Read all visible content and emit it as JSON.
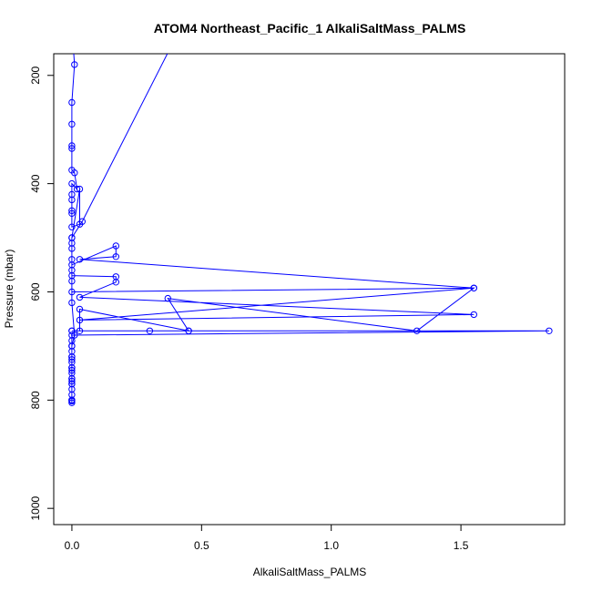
{
  "chart_data": {
    "type": "line",
    "title": "ATOM4 Northeast_Pacific_1 AlkaliSaltMass_PALMS",
    "xlabel": "AlkaliSaltMass_PALMS",
    "ylabel": "Pressure (mbar)",
    "xlim": [
      -0.07,
      1.9
    ],
    "ylim": [
      1030,
      160
    ],
    "y_reversed": true,
    "x_ticks": [
      0,
      0.5,
      1,
      1.5
    ],
    "x_tick_labels": [
      "0.0",
      "0.5",
      "1.0",
      "1.5"
    ],
    "y_ticks": [
      200,
      400,
      600,
      800,
      1000
    ],
    "y_tick_labels": [
      "200",
      "400",
      "600",
      "800",
      "1000"
    ],
    "grid": false,
    "color": "#0000ff",
    "series": [
      {
        "x": [
          0.0,
          0.0,
          0.0,
          0.0,
          0.0,
          0.0,
          0.0,
          0.0,
          0.01,
          0.0,
          0.0,
          0.0,
          0.04,
          0.4,
          0.0,
          0.0,
          0.01,
          0.0,
          0.0,
          0.0,
          0.0,
          0.0,
          0.01,
          0.02,
          0.0,
          0.0,
          0.0,
          0.0,
          0.0,
          0.0,
          0.03,
          0.03,
          0.0,
          0.0,
          0.0,
          0.0,
          0.0,
          0.17,
          0.17,
          0.03,
          1.55,
          0.0,
          0.0,
          0.0,
          0.17,
          0.17,
          0.03,
          1.55,
          0.03,
          1.55,
          1.33,
          0.37,
          0.45,
          0.03,
          0.03,
          0.0,
          0.3,
          0.45,
          0.0,
          1.84,
          0.0,
          0.0,
          0.0,
          0.0,
          0.0,
          0.0,
          0.0,
          0.0,
          0.0,
          0.0,
          0.0,
          0.0,
          0.0,
          0.0,
          0.0,
          0.0
        ],
        "y": [
          800,
          805,
          802,
          770,
          760,
          740,
          720,
          700,
          680,
          620,
          560,
          500,
          470,
          130,
          90,
          110,
          180,
          250,
          290,
          330,
          335,
          375,
          380,
          410,
          400,
          420,
          430,
          450,
          455,
          480,
          475,
          410,
          500,
          510,
          520,
          540,
          550,
          515,
          535,
          540,
          593,
          600,
          580,
          570,
          572,
          582,
          610,
          642,
          652,
          593,
          672,
          612,
          672,
          632,
          672,
          672,
          672,
          672,
          672,
          672,
          680,
          690,
          700,
          710,
          720,
          725,
          730,
          740,
          745,
          750,
          760,
          765,
          770,
          780,
          790,
          800
        ]
      }
    ]
  }
}
